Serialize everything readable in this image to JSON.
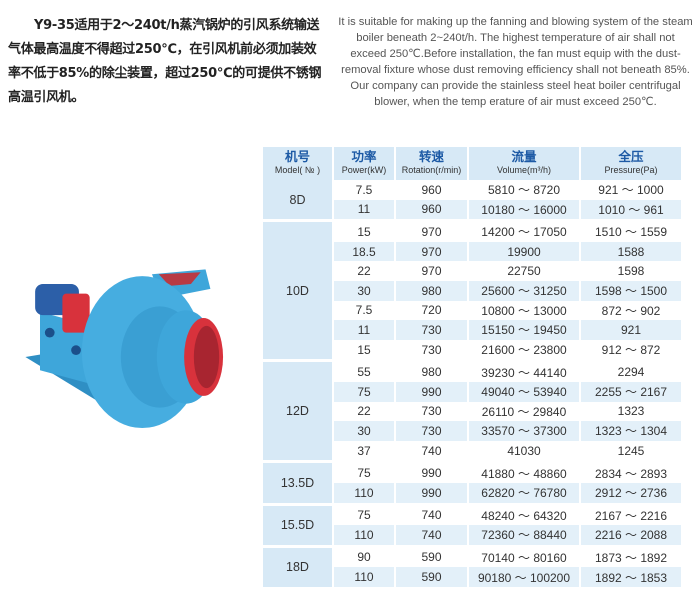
{
  "intro_cn": "Y9-35适用于2～240t/h蒸汽锅炉的引风系统输送气体最高温度不得超过250℃，在引风机前必须加装效率不低于85%的除尘装置，超过250℃的可提供不锈钢高温引风机。",
  "intro_en": "It is suitable for making up the fanning and blowing system of the steam boiler beneath 2~240t/h. The highest temperature of air shall not exceed 250℃.Before installation, the fan must equip with the dust-removal fixture whose dust removing efficiency shall not beneath 85%. Our company can provide the stainless steel heat boiler centrifugal blower, when the temp erature of air must exceed 250℃.",
  "colors": {
    "header_bg": "#d7e9f6",
    "header_text": "#1d5aa5",
    "stripe": "#e3f0f9",
    "fan_body": "#3ea6da",
    "fan_inlet": "#d8323c"
  },
  "table": {
    "headers": [
      {
        "zh": "机号",
        "en": "Model( № )"
      },
      {
        "zh": "功率",
        "en": "Power(kW)"
      },
      {
        "zh": "转速",
        "en": "Rotation(r/min)"
      },
      {
        "zh": "流量",
        "en": "Volume(m³/h)"
      },
      {
        "zh": "全压",
        "en": "Pressure(Pa)"
      }
    ],
    "groups": [
      {
        "model": "8D",
        "rows": [
          [
            "7.5",
            "960",
            "5810 ～ 8720",
            "921 ～ 1000"
          ],
          [
            "11",
            "960",
            "10180 ～ 16000",
            "1010 ～ 961"
          ]
        ]
      },
      {
        "model": "10D",
        "rows": [
          [
            "15",
            "970",
            "14200 ～ 17050",
            "1510 ～ 1559"
          ],
          [
            "18.5",
            "970",
            "19900",
            "1588"
          ],
          [
            "22",
            "970",
            "22750",
            "1598"
          ],
          [
            "30",
            "980",
            "25600 ～ 31250",
            "1598 ～ 1500"
          ],
          [
            "7.5",
            "720",
            "10800 ～ 13000",
            "872 ～ 902"
          ],
          [
            "11",
            "730",
            "15150 ～ 19450",
            "921"
          ],
          [
            "15",
            "730",
            "21600 ～ 23800",
            "912 ～ 872"
          ]
        ]
      },
      {
        "model": "12D",
        "rows": [
          [
            "55",
            "980",
            "39230 ～ 44140",
            "2294"
          ],
          [
            "75",
            "990",
            "49040 ～ 53940",
            "2255 ～ 2167"
          ],
          [
            "22",
            "730",
            "26110 ～ 29840",
            "1323"
          ],
          [
            "30",
            "730",
            "33570 ～ 37300",
            "1323 ～ 1304"
          ],
          [
            "37",
            "740",
            "41030",
            "1245"
          ]
        ]
      },
      {
        "model": "13.5D",
        "rows": [
          [
            "75",
            "990",
            "41880 ～ 48860",
            "2834 ～ 2893"
          ],
          [
            "110",
            "990",
            "62820 ～ 76780",
            "2912 ～ 2736"
          ]
        ]
      },
      {
        "model": "15.5D",
        "rows": [
          [
            "75",
            "740",
            "48240 ～ 64320",
            "2167 ～ 2216"
          ],
          [
            "110",
            "740",
            "72360 ～ 88440",
            "2216 ～ 2088"
          ]
        ]
      },
      {
        "model": "18D",
        "rows": [
          [
            "90",
            "590",
            "70140 ～ 80160",
            "1873 ～ 1892"
          ],
          [
            "110",
            "590",
            "90180 ～ 100200",
            "1892 ～ 1853"
          ]
        ]
      }
    ]
  }
}
